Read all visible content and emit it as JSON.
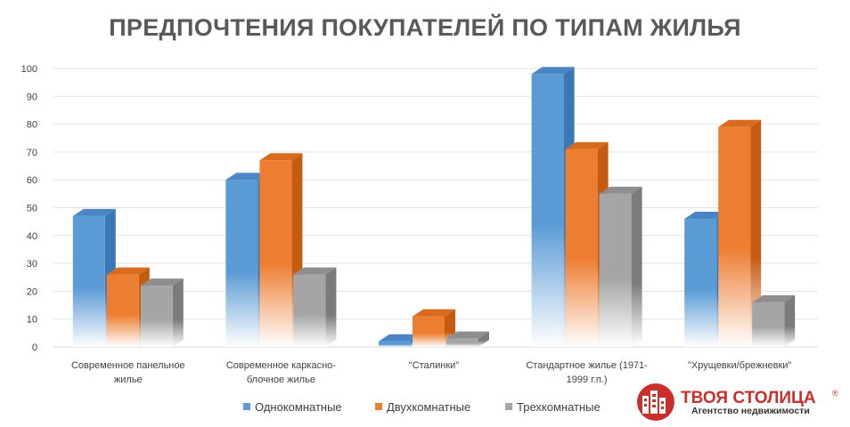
{
  "chart_data": {
    "type": "bar",
    "title": "ПРЕДПОЧТЕНИЯ ПОКУПАТЕЛЕЙ ПО ТИПАМ ЖИЛЬЯ",
    "categories": [
      [
        "Современное  панельное",
        "жилье"
      ],
      [
        "Современное  каркасно-",
        "блочное жилье"
      ],
      [
        "\"Сталинки\""
      ],
      [
        "Стандартное жилье (1971-",
        "1999 г.п.)"
      ],
      [
        "\"Хрущевки/брежневки\""
      ]
    ],
    "series": [
      {
        "name": "Однокомнатные",
        "color": "#5b9bd5",
        "side": "#3a78b5",
        "top": "#4a86c4",
        "values": [
          47,
          60,
          2,
          98,
          46
        ]
      },
      {
        "name": "Двухкомнатные",
        "color": "#ed7d31",
        "side": "#c55a11",
        "top": "#d96b1f",
        "values": [
          26,
          67,
          11,
          71,
          79
        ]
      },
      {
        "name": "Трехкомнатные",
        "color": "#a5a5a5",
        "side": "#7b7b7b",
        "top": "#8e8e8e",
        "values": [
          22,
          26,
          3,
          55,
          16
        ]
      }
    ],
    "yticks": [
      0,
      10,
      20,
      30,
      40,
      50,
      60,
      70,
      80,
      90,
      100
    ],
    "ylim": [
      0,
      100
    ],
    "grid": true,
    "legend": "bottom"
  },
  "logo": {
    "name": "ТВОЯ СТОЛИЦА",
    "registered": "®",
    "tagline": "Агентство недвижимости",
    "color": "#c9302c",
    "icon": "building-icon"
  }
}
